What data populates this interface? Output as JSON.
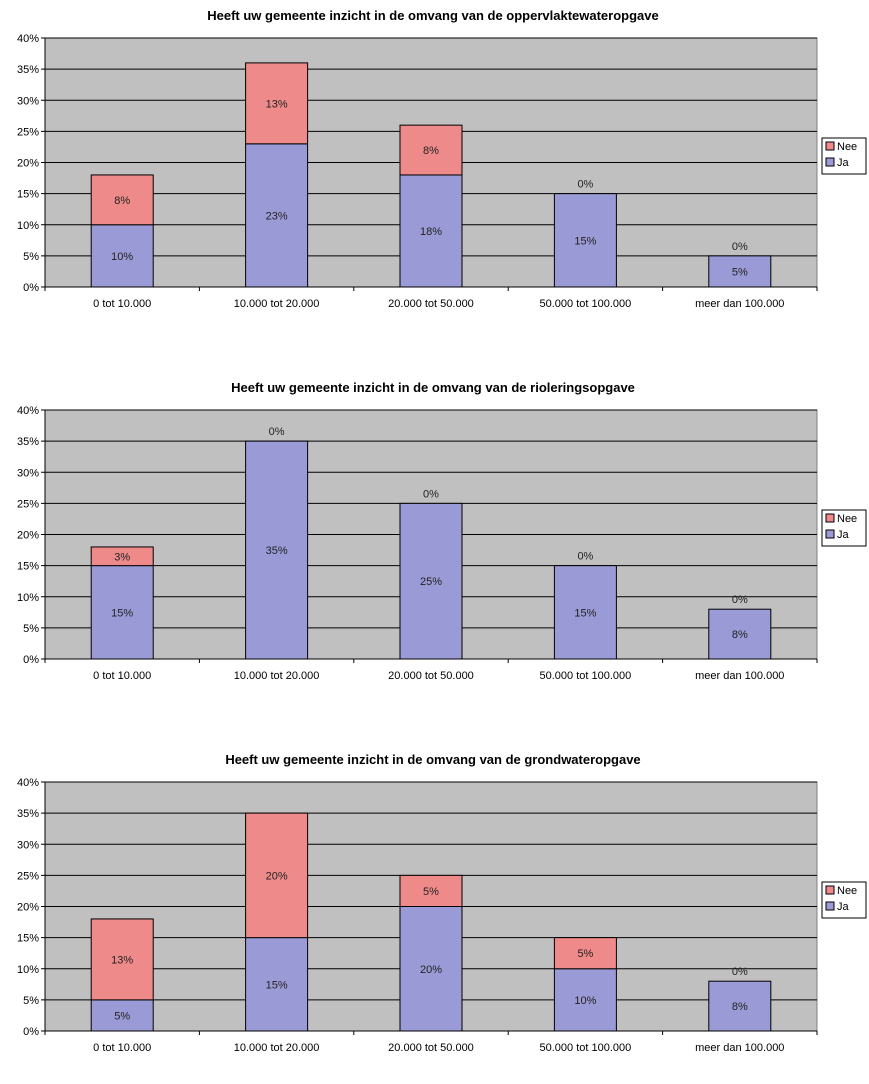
{
  "colors": {
    "plot_bg": "#c0c0c0",
    "grid": "#000000",
    "ja": "#9a9ad6",
    "nee": "#ef8a8a",
    "bar_edge": "#000000"
  },
  "chart_data": [
    {
      "type": "bar",
      "stacked": true,
      "title": "Heeft uw gemeente inzicht in de omvang van de oppervlaktewateropgave",
      "categories": [
        "0 tot 10.000",
        "10.000 tot 20.000",
        "20.000 tot 50.000",
        "50.000 tot 100.000",
        "meer dan 100.000"
      ],
      "series": [
        {
          "name": "Ja",
          "values": [
            10,
            23,
            18,
            15,
            5
          ],
          "labels": [
            "10%",
            "23%",
            "18%",
            "15%",
            "5%"
          ]
        },
        {
          "name": "Nee",
          "values": [
            8,
            13,
            8,
            0,
            0
          ],
          "labels": [
            "8%",
            "13%",
            "8%",
            "0%",
            "0%"
          ]
        }
      ],
      "yticks": [
        "0%",
        "5%",
        "10%",
        "15%",
        "20%",
        "25%",
        "30%",
        "35%",
        "40%"
      ],
      "ylim": [
        0,
        40
      ],
      "grid": true,
      "legend": "right"
    },
    {
      "type": "bar",
      "stacked": true,
      "title": "Heeft uw gemeente inzicht in de omvang van de rioleringsopgave",
      "categories": [
        "0 tot 10.000",
        "10.000 tot 20.000",
        "20.000 tot 50.000",
        "50.000 tot 100.000",
        "meer dan 100.000"
      ],
      "series": [
        {
          "name": "Ja",
          "values": [
            15,
            35,
            25,
            15,
            8
          ],
          "labels": [
            "15%",
            "35%",
            "25%",
            "15%",
            "8%"
          ]
        },
        {
          "name": "Nee",
          "values": [
            3,
            0,
            0,
            0,
            0
          ],
          "labels": [
            "3%",
            "0%",
            "0%",
            "0%",
            "0%"
          ]
        }
      ],
      "yticks": [
        "0%",
        "5%",
        "10%",
        "15%",
        "20%",
        "25%",
        "30%",
        "35%",
        "40%"
      ],
      "ylim": [
        0,
        40
      ],
      "grid": true,
      "legend": "right"
    },
    {
      "type": "bar",
      "stacked": true,
      "title": "Heeft uw gemeente inzicht in de omvang van de grondwateropgave",
      "categories": [
        "0 tot 10.000",
        "10.000 tot 20.000",
        "20.000 tot 50.000",
        "50.000 tot 100.000",
        "meer dan 100.000"
      ],
      "series": [
        {
          "name": "Ja",
          "values": [
            5,
            15,
            20,
            10,
            8
          ],
          "labels": [
            "5%",
            "15%",
            "20%",
            "10%",
            "8%"
          ]
        },
        {
          "name": "Nee",
          "values": [
            13,
            20,
            5,
            5,
            0
          ],
          "labels": [
            "13%",
            "20%",
            "5%",
            "5%",
            "0%"
          ]
        }
      ],
      "yticks": [
        "0%",
        "5%",
        "10%",
        "15%",
        "20%",
        "25%",
        "30%",
        "35%",
        "40%"
      ],
      "ylim": [
        0,
        40
      ],
      "grid": true,
      "legend": "right"
    }
  ]
}
